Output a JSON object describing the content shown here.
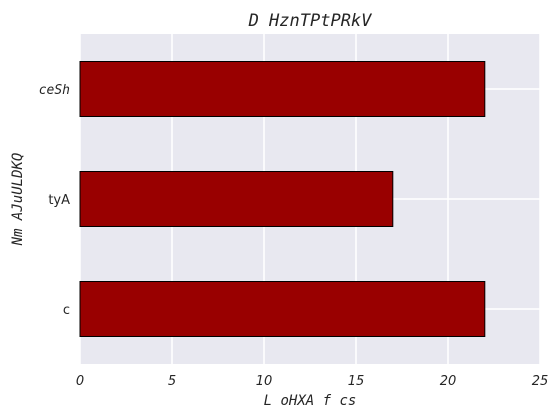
{
  "chart_data": {
    "type": "bar",
    "orientation": "horizontal",
    "title": "D HznTPtPRkV",
    "xlabel": "L oHXA f cs",
    "ylabel": "Nm  AJuULDKQ",
    "categories": [
      "c",
      "tyA",
      "ceSh"
    ],
    "values": [
      22,
      17,
      22
    ],
    "xlim": [
      0,
      25
    ],
    "xticks": [
      0,
      5,
      10,
      15,
      20,
      25
    ],
    "grid": true,
    "bar_color": "#990000",
    "bar_edge_color": "#000000",
    "plot_background": "#e8e8f0",
    "grid_color": "#ffffff"
  }
}
